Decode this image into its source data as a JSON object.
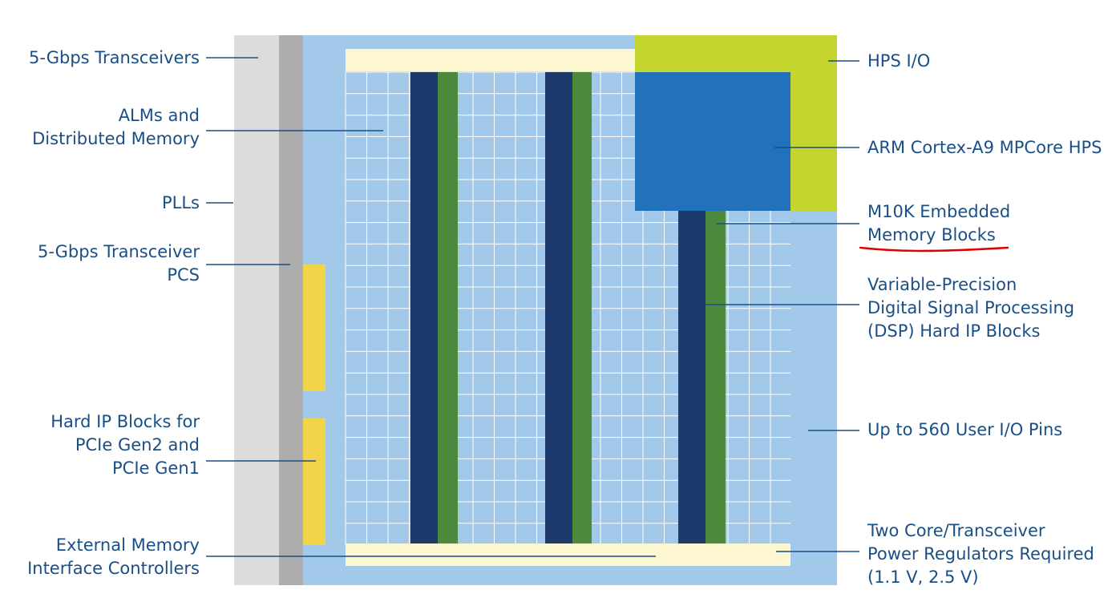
{
  "colors": {
    "label_text": "#1a4f86",
    "leader_line": "#1a4f86",
    "transceiver_strip": "#dcdcdc",
    "pll_strip": "#adadad",
    "fabric_background": "#a3c9ea",
    "fabric_grid": "#ffffff",
    "io_bar": "#fcf7d0",
    "memory_column": "#1e3a6d",
    "dsp_column": "#4e8a3e",
    "pcie_block": "#f2d44a",
    "hps_io": "#c3d52e",
    "hps_core": "#2272bb",
    "annotation_underline": "#e00000"
  },
  "labels": {
    "transceivers": "5-Gbps Transceivers",
    "alms": [
      "ALMs and",
      "Distributed Memory"
    ],
    "plls": "PLLs",
    "transceiver_pcs": [
      "5-Gbps Transceiver",
      "PCS"
    ],
    "pcie": [
      "Hard IP Blocks for",
      "PCIe Gen2 and",
      "PCIe Gen1"
    ],
    "ext_mem": [
      "External Memory",
      "Interface Controllers"
    ],
    "hps_io": "HPS I/O",
    "arm_hps": "ARM Cortex-A9 MPCore HPS",
    "m10k": [
      "M10K Embedded",
      "Memory Blocks"
    ],
    "dsp": [
      "Variable-Precision",
      "Digital Signal Processing",
      "(DSP) Hard IP Blocks"
    ],
    "user_io": "Up to 560 User I/O Pins",
    "power": [
      "Two Core/Transceiver",
      "Power Regulators Required",
      "(1.1 V, 2.5 V)"
    ]
  }
}
